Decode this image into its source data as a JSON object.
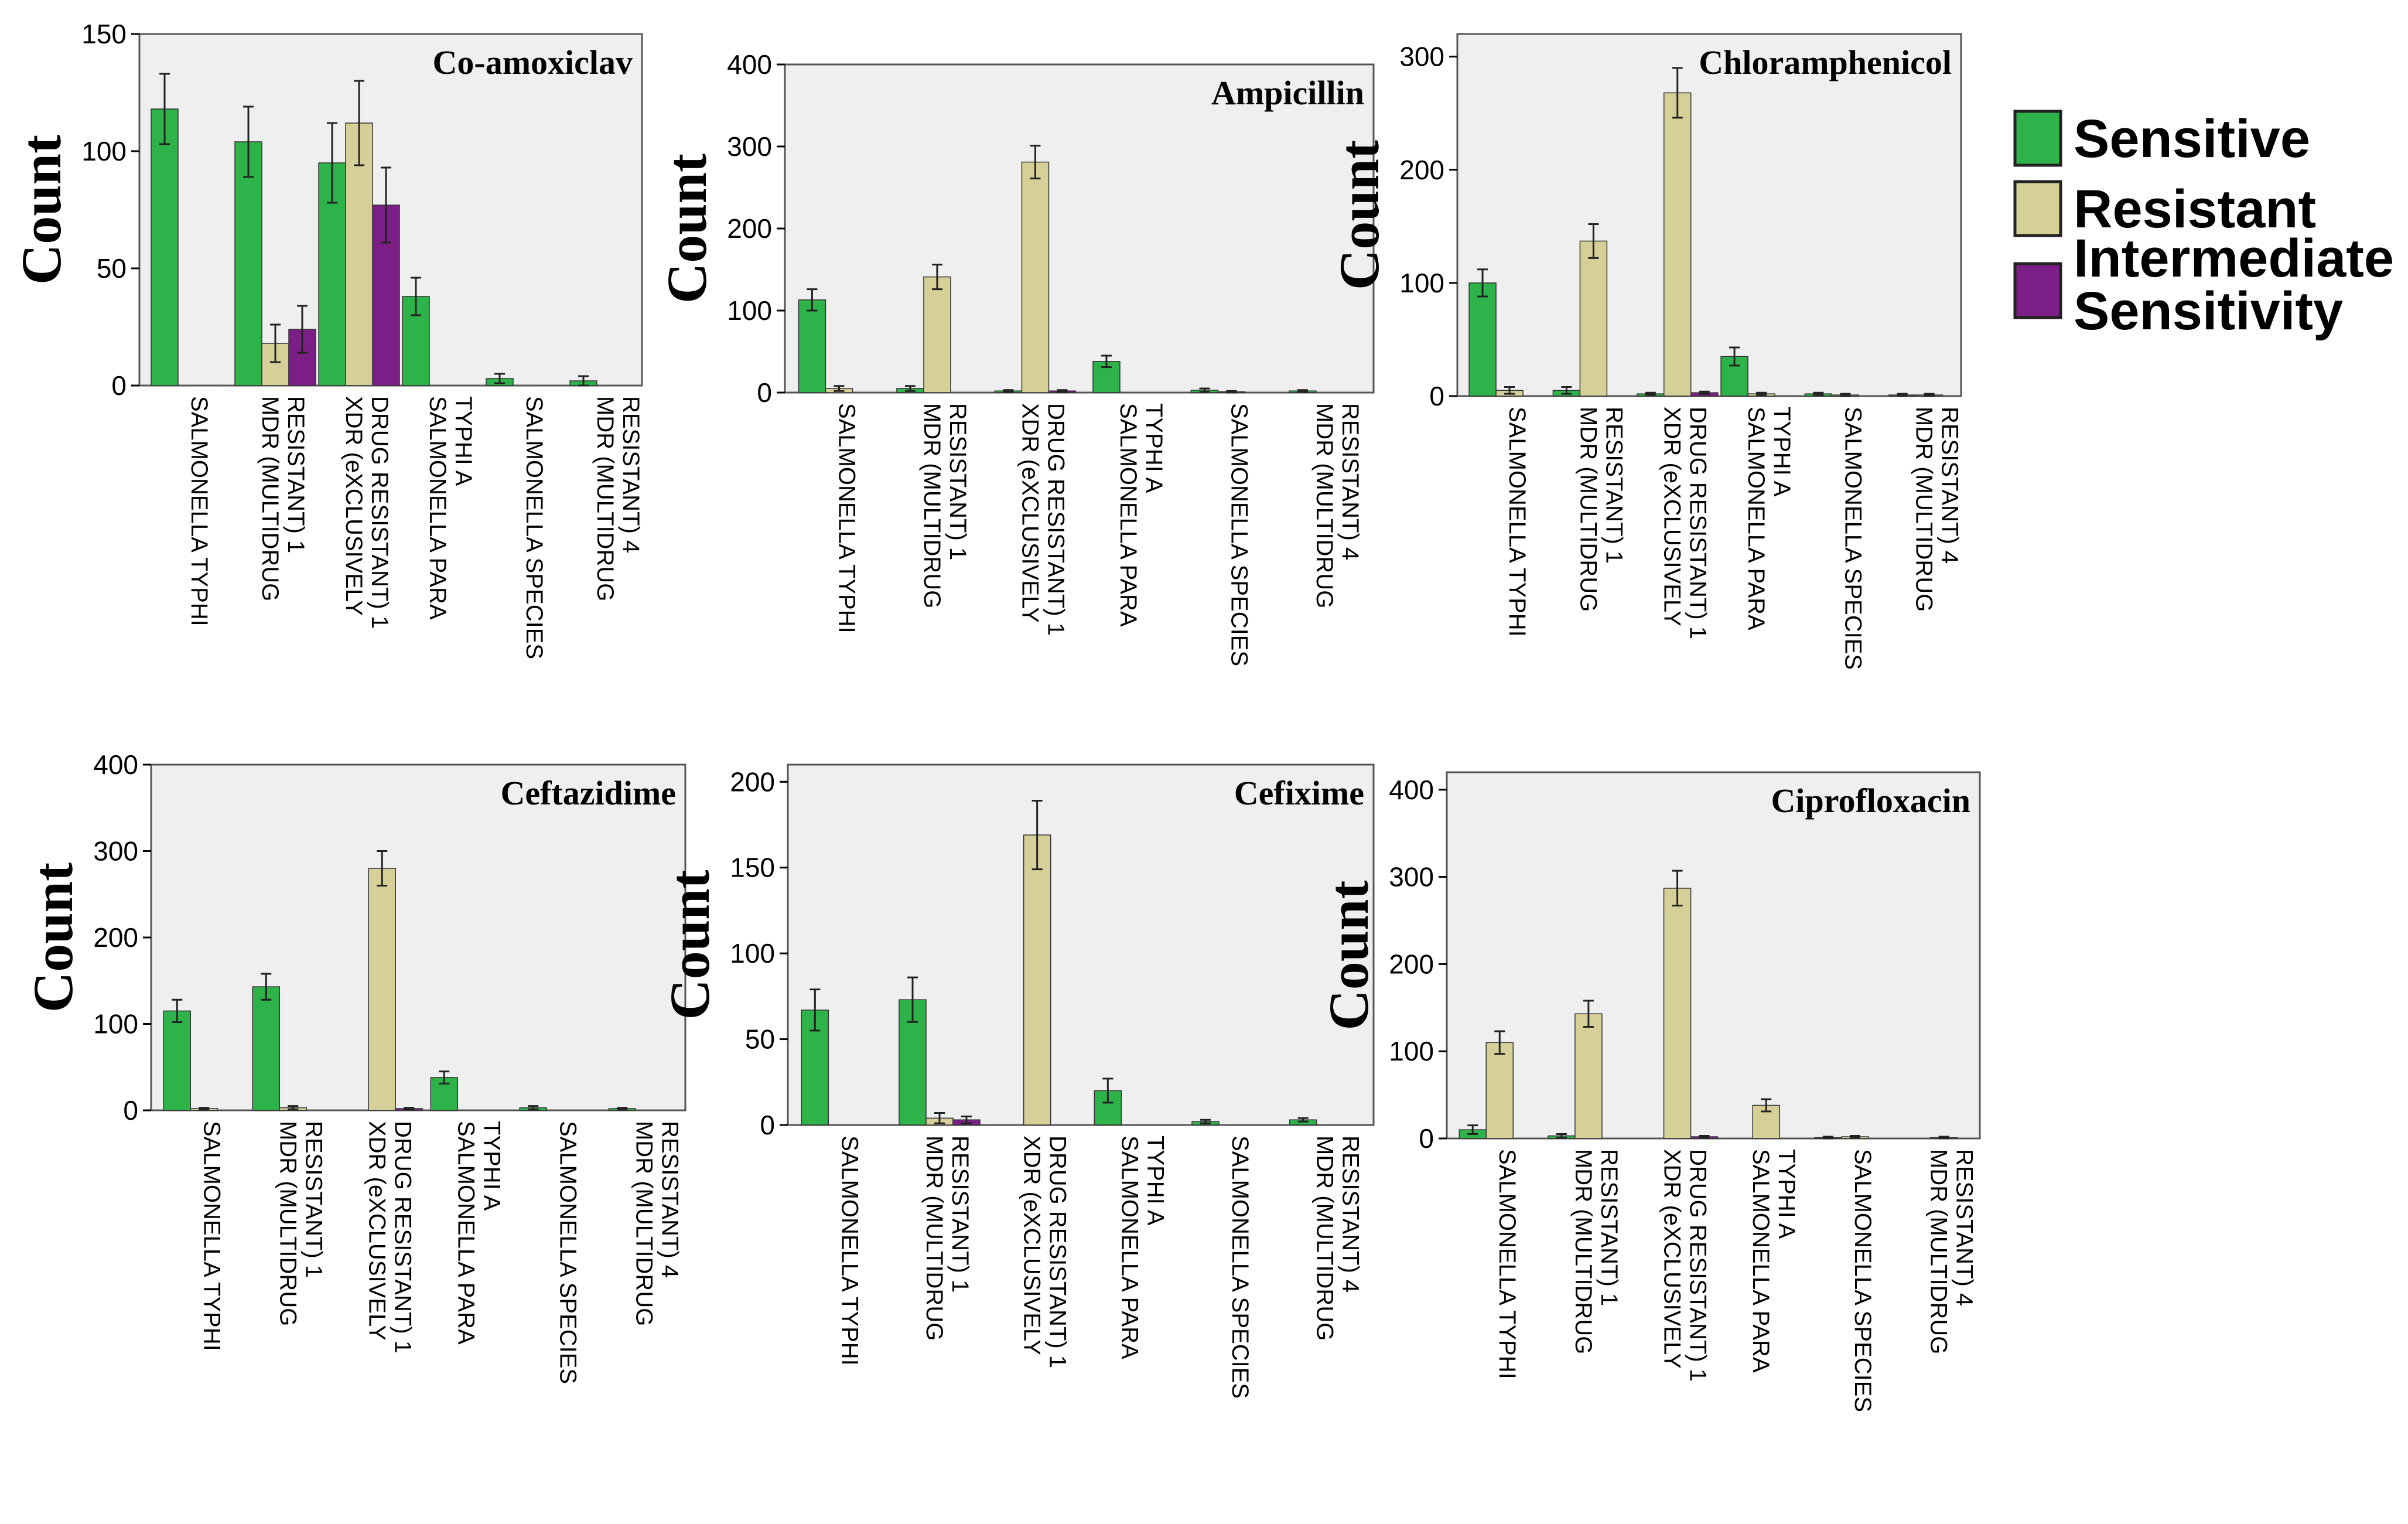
{
  "legend": {
    "items": [
      {
        "label": "Sensitive",
        "color": "#2db34a"
      },
      {
        "label": "Resistant",
        "color": "#d6cf98"
      },
      {
        "label_lines": [
          "Intermediate",
          "Sensitivity"
        ],
        "color": "#7b1f86"
      }
    ]
  },
  "chart_data": [
    {
      "type": "bar",
      "title": "Co-amoxiclav",
      "ylabel": "Count",
      "ylim": [
        0,
        150
      ],
      "yticks": [
        0,
        50,
        100,
        150
      ],
      "categories": [
        [
          "SALMONELLA TYPHI"
        ],
        [
          "MDR (MULTIDRUG",
          "RESISTANT) 1"
        ],
        [
          "XDR (eXCLUSIVELY",
          "DRUG RESISTANT) 1"
        ],
        [
          "SALMONELLA PARA",
          "TYPHI A"
        ],
        [
          "SALMONELLA SPECIES"
        ],
        [
          "MDR (MULTIDRUG",
          "RESISTANT) 4"
        ]
      ],
      "series": [
        {
          "name": "Sensitive",
          "values": [
            118,
            104,
            95,
            38,
            3,
            2
          ],
          "err": [
            15,
            15,
            17,
            8,
            2,
            2
          ]
        },
        {
          "name": "Resistant",
          "values": [
            0,
            18,
            112,
            0,
            0,
            0
          ],
          "err": [
            0,
            8,
            18,
            0,
            0,
            0
          ]
        },
        {
          "name": "Intermediate Sensitivity",
          "values": [
            0,
            24,
            77,
            0,
            0,
            0
          ],
          "err": [
            0,
            10,
            16,
            0,
            0,
            0
          ]
        }
      ]
    },
    {
      "type": "bar",
      "title": "Ampicillin",
      "ylabel": "Count",
      "ylim": [
        0,
        400
      ],
      "yticks": [
        0,
        100,
        200,
        300,
        400
      ],
      "categories": [
        [
          "SALMONELLA TYPHI"
        ],
        [
          "MDR (MULTIDRUG",
          "RESISTANT) 1"
        ],
        [
          "XDR (eXCLUSIVELY",
          "DRUG RESISTANT) 1"
        ],
        [
          "SALMONELLA PARA",
          "TYPHI A"
        ],
        [
          "SALMONELLA SPECIES"
        ],
        [
          "MDR (MULTIDRUG",
          "RESISTANT) 4"
        ]
      ],
      "series": [
        {
          "name": "Sensitive",
          "values": [
            113,
            5,
            2,
            38,
            3,
            2
          ],
          "err": [
            13,
            3,
            1,
            7,
            2,
            1
          ]
        },
        {
          "name": "Resistant",
          "values": [
            5,
            141,
            281,
            0,
            1,
            0
          ],
          "err": [
            3,
            15,
            20,
            0,
            1,
            0
          ]
        },
        {
          "name": "Intermediate Sensitivity",
          "values": [
            0,
            0,
            2,
            0,
            0,
            0
          ],
          "err": [
            0,
            0,
            1,
            0,
            0,
            0
          ]
        }
      ]
    },
    {
      "type": "bar",
      "title": "Chloramphenicol",
      "ylabel": "Count",
      "ylim": [
        0,
        320
      ],
      "yticks": [
        0,
        100,
        200,
        300
      ],
      "categories": [
        [
          "SALMONELLA TYPHI"
        ],
        [
          "MDR (MULTIDRUG",
          "RESISTANT) 1"
        ],
        [
          "XDR (eXCLUSIVELY",
          "DRUG RESISTANT) 1"
        ],
        [
          "SALMONELLA PARA",
          "TYPHI A"
        ],
        [
          "SALMONELLA SPECIES"
        ],
        [
          "MDR (MULTIDRUG",
          "RESISTANT) 4"
        ]
      ],
      "series": [
        {
          "name": "Sensitive",
          "values": [
            100,
            5,
            2,
            35,
            2,
            1
          ],
          "err": [
            12,
            3,
            1,
            8,
            1,
            1
          ]
        },
        {
          "name": "Resistant",
          "values": [
            5,
            137,
            268,
            2,
            1,
            1
          ],
          "err": [
            3,
            15,
            22,
            1,
            1,
            1
          ]
        },
        {
          "name": "Intermediate Sensitivity",
          "values": [
            0,
            0,
            3,
            0,
            0,
            0
          ],
          "err": [
            0,
            0,
            1,
            0,
            0,
            0
          ]
        }
      ]
    },
    {
      "type": "bar",
      "title": "Ceftazidime",
      "ylabel": "Count",
      "ylim": [
        0,
        400
      ],
      "yticks": [
        0,
        100,
        200,
        300,
        400
      ],
      "categories": [
        [
          "SALMONELLA TYPHI"
        ],
        [
          "MDR (MULTIDRUG",
          "RESISTANT) 1"
        ],
        [
          "XDR (eXCLUSIVELY",
          "DRUG RESISTANT) 1"
        ],
        [
          "SALMONELLA PARA",
          "TYPHI A"
        ],
        [
          "SALMONELLA SPECIES"
        ],
        [
          "MDR (MULTIDRUG",
          "RESISTANT) 4"
        ]
      ],
      "series": [
        {
          "name": "Sensitive",
          "values": [
            115,
            143,
            0,
            38,
            3,
            2
          ],
          "err": [
            13,
            15,
            0,
            7,
            2,
            1
          ]
        },
        {
          "name": "Resistant",
          "values": [
            2,
            3,
            280,
            0,
            0,
            0
          ],
          "err": [
            1,
            2,
            20,
            0,
            0,
            0
          ]
        },
        {
          "name": "Intermediate Sensitivity",
          "values": [
            0,
            0,
            2,
            0,
            0,
            0
          ],
          "err": [
            0,
            0,
            1,
            0,
            0,
            0
          ]
        }
      ]
    },
    {
      "type": "bar",
      "title": "Cefixime",
      "ylabel": "Count",
      "ylim": [
        0,
        210
      ],
      "yticks": [
        0,
        50,
        100,
        150,
        200
      ],
      "categories": [
        [
          "SALMONELLA TYPHI"
        ],
        [
          "MDR (MULTIDRUG",
          "RESISTANT) 1"
        ],
        [
          "XDR (eXCLUSIVELY",
          "DRUG RESISTANT) 1"
        ],
        [
          "SALMONELLA PARA",
          "TYPHI A"
        ],
        [
          "SALMONELLA SPECIES"
        ],
        [
          "MDR (MULTIDRUG",
          "RESISTANT) 4"
        ]
      ],
      "series": [
        {
          "name": "Sensitive",
          "values": [
            67,
            73,
            0,
            20,
            2,
            3
          ],
          "err": [
            12,
            13,
            0,
            7,
            1,
            1
          ]
        },
        {
          "name": "Resistant",
          "values": [
            0,
            4,
            169,
            0,
            0,
            0
          ],
          "err": [
            0,
            3,
            20,
            0,
            0,
            0
          ]
        },
        {
          "name": "Intermediate Sensitivity",
          "values": [
            0,
            3,
            0,
            0,
            0,
            0
          ],
          "err": [
            0,
            2,
            0,
            0,
            0,
            0
          ]
        }
      ]
    },
    {
      "type": "bar",
      "title": "Ciprofloxacin",
      "ylabel": "Count",
      "ylim": [
        0,
        420
      ],
      "yticks": [
        0,
        100,
        200,
        300,
        400
      ],
      "categories": [
        [
          "SALMONELLA TYPHI"
        ],
        [
          "MDR (MULTIDRUG",
          "RESISTANT) 1"
        ],
        [
          "XDR (eXCLUSIVELY",
          "DRUG RESISTANT) 1"
        ],
        [
          "SALMONELLA PARA",
          "TYPHI A"
        ],
        [
          "SALMONELLA SPECIES"
        ],
        [
          "MDR (MULTIDRUG",
          "RESISTANT) 4"
        ]
      ],
      "series": [
        {
          "name": "Sensitive",
          "values": [
            10,
            3,
            0,
            0,
            1,
            0
          ],
          "err": [
            5,
            2,
            0,
            0,
            1,
            0
          ]
        },
        {
          "name": "Resistant",
          "values": [
            110,
            143,
            287,
            38,
            2,
            1
          ],
          "err": [
            13,
            15,
            20,
            7,
            1,
            1
          ]
        },
        {
          "name": "Intermediate Sensitivity",
          "values": [
            0,
            0,
            2,
            0,
            0,
            0
          ],
          "err": [
            0,
            0,
            1,
            0,
            0,
            0
          ]
        }
      ]
    }
  ]
}
